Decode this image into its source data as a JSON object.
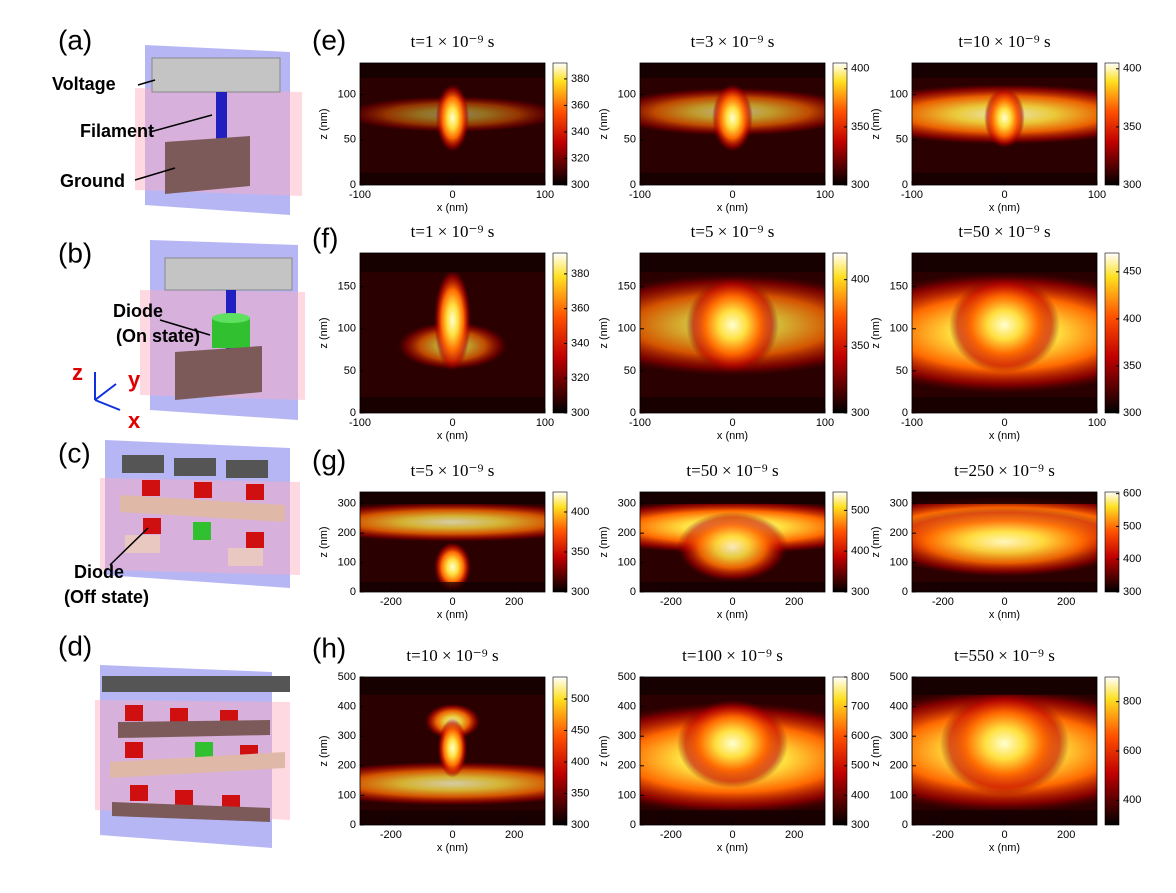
{
  "panel_labels": [
    "(a)",
    "(b)",
    "(c)",
    "(d)",
    "(e)",
    "(f)",
    "(g)",
    "(h)"
  ],
  "schematic": {
    "a": {
      "voltage": "Voltage",
      "filament": "Filament",
      "ground": "Ground"
    },
    "b": {
      "diode": "Diode",
      "diode_state": "(On state)",
      "axes": [
        "z",
        "y",
        "x"
      ]
    },
    "c": {
      "diode": "Diode",
      "diode_state": "(Off state)"
    }
  },
  "chart_data": [
    {
      "type": "heatmap",
      "title": "t=1 × 10⁻⁹ s",
      "xlabel": "x (nm)",
      "ylabel": "z (nm)",
      "xlim": [
        -100,
        100
      ],
      "xticks": [
        -100,
        0,
        100
      ],
      "ylim": [
        0,
        135
      ],
      "yticks": [
        0,
        50,
        100
      ],
      "clim": [
        300,
        392
      ],
      "cticks": [
        300,
        320,
        340,
        360,
        380
      ]
    },
    {
      "type": "heatmap",
      "title": "t=3 × 10⁻⁹ s",
      "xlabel": "x (nm)",
      "ylabel": "z (nm)",
      "xlim": [
        -100,
        100
      ],
      "xticks": [
        -100,
        0,
        100
      ],
      "ylim": [
        0,
        135
      ],
      "yticks": [
        0,
        50,
        100
      ],
      "clim": [
        300,
        405
      ],
      "cticks": [
        300,
        350,
        400
      ]
    },
    {
      "type": "heatmap",
      "title": "t=10 × 10⁻⁹ s",
      "xlabel": "x (nm)",
      "ylabel": "z (nm)",
      "xlim": [
        -100,
        100
      ],
      "xticks": [
        -100,
        0,
        100
      ],
      "ylim": [
        0,
        135
      ],
      "yticks": [
        0,
        50,
        100
      ],
      "clim": [
        300,
        405
      ],
      "cticks": [
        300,
        350,
        400
      ]
    },
    {
      "type": "heatmap",
      "title": "t=1 × 10⁻⁹ s",
      "xlabel": "x (nm)",
      "ylabel": "z (nm)",
      "xlim": [
        -100,
        100
      ],
      "xticks": [
        -100,
        0,
        100
      ],
      "ylim": [
        0,
        190
      ],
      "yticks": [
        0,
        50,
        100,
        150
      ],
      "clim": [
        300,
        392
      ],
      "cticks": [
        300,
        320,
        340,
        360,
        380
      ]
    },
    {
      "type": "heatmap",
      "title": "t=5 × 10⁻⁹ s",
      "xlabel": "x (nm)",
      "ylabel": "z (nm)",
      "xlim": [
        -100,
        100
      ],
      "xticks": [
        -100,
        0,
        100
      ],
      "ylim": [
        0,
        190
      ],
      "yticks": [
        0,
        50,
        100,
        150
      ],
      "clim": [
        300,
        420
      ],
      "cticks": [
        300,
        350,
        400
      ]
    },
    {
      "type": "heatmap",
      "title": "t=50 × 10⁻⁹ s",
      "xlabel": "x (nm)",
      "ylabel": "z (nm)",
      "xlim": [
        -100,
        100
      ],
      "xticks": [
        -100,
        0,
        100
      ],
      "ylim": [
        0,
        190
      ],
      "yticks": [
        0,
        50,
        100,
        150
      ],
      "clim": [
        300,
        470
      ],
      "cticks": [
        300,
        350,
        400,
        450
      ]
    },
    {
      "type": "heatmap",
      "title": "t=5 × 10⁻⁹ s",
      "xlabel": "x (nm)",
      "ylabel": "z (nm)",
      "xlim": [
        -300,
        300
      ],
      "xticks": [
        -200,
        0,
        200
      ],
      "ylim": [
        0,
        340
      ],
      "yticks": [
        0,
        100,
        200,
        300
      ],
      "clim": [
        300,
        425
      ],
      "cticks": [
        300,
        350,
        400
      ]
    },
    {
      "type": "heatmap",
      "title": "t=50 × 10⁻⁹ s",
      "xlabel": "x (nm)",
      "ylabel": "z (nm)",
      "xlim": [
        -300,
        300
      ],
      "xticks": [
        -200,
        0,
        200
      ],
      "ylim": [
        0,
        340
      ],
      "yticks": [
        0,
        100,
        200,
        300
      ],
      "clim": [
        300,
        545
      ],
      "cticks": [
        300,
        400,
        500
      ]
    },
    {
      "type": "heatmap",
      "title": "t=250 × 10⁻⁹ s",
      "xlabel": "x (nm)",
      "ylabel": "z (nm)",
      "xlim": [
        -300,
        300
      ],
      "xticks": [
        -200,
        0,
        200
      ],
      "ylim": [
        0,
        340
      ],
      "yticks": [
        0,
        100,
        200,
        300
      ],
      "clim": [
        300,
        605
      ],
      "cticks": [
        300,
        400,
        500,
        600
      ]
    },
    {
      "type": "heatmap",
      "title": "t=10 × 10⁻⁹ s",
      "xlabel": "x (nm)",
      "ylabel": "z (nm)",
      "xlim": [
        -300,
        300
      ],
      "xticks": [
        -200,
        0,
        200
      ],
      "ylim": [
        0,
        500
      ],
      "yticks": [
        0,
        100,
        200,
        300,
        400,
        500
      ],
      "clim": [
        300,
        535
      ],
      "cticks": [
        300,
        350,
        400,
        450,
        500
      ]
    },
    {
      "type": "heatmap",
      "title": "t=100 × 10⁻⁹ s",
      "xlabel": "x (nm)",
      "ylabel": "z (nm)",
      "xlim": [
        -300,
        300
      ],
      "xticks": [
        -200,
        0,
        200
      ],
      "ylim": [
        0,
        500
      ],
      "yticks": [
        0,
        100,
        200,
        300,
        400,
        500
      ],
      "clim": [
        300,
        800
      ],
      "cticks": [
        300,
        400,
        500,
        600,
        700,
        800
      ]
    },
    {
      "type": "heatmap",
      "title": "t=550 × 10⁻⁹ s",
      "xlabel": "x (nm)",
      "ylabel": "z (nm)",
      "xlim": [
        -300,
        300
      ],
      "xticks": [
        -200,
        0,
        200
      ],
      "ylim": [
        0,
        500
      ],
      "yticks": [
        0,
        100,
        200,
        300,
        400,
        500
      ],
      "clim": [
        300,
        900
      ],
      "cticks": [
        400,
        600,
        800
      ]
    }
  ]
}
